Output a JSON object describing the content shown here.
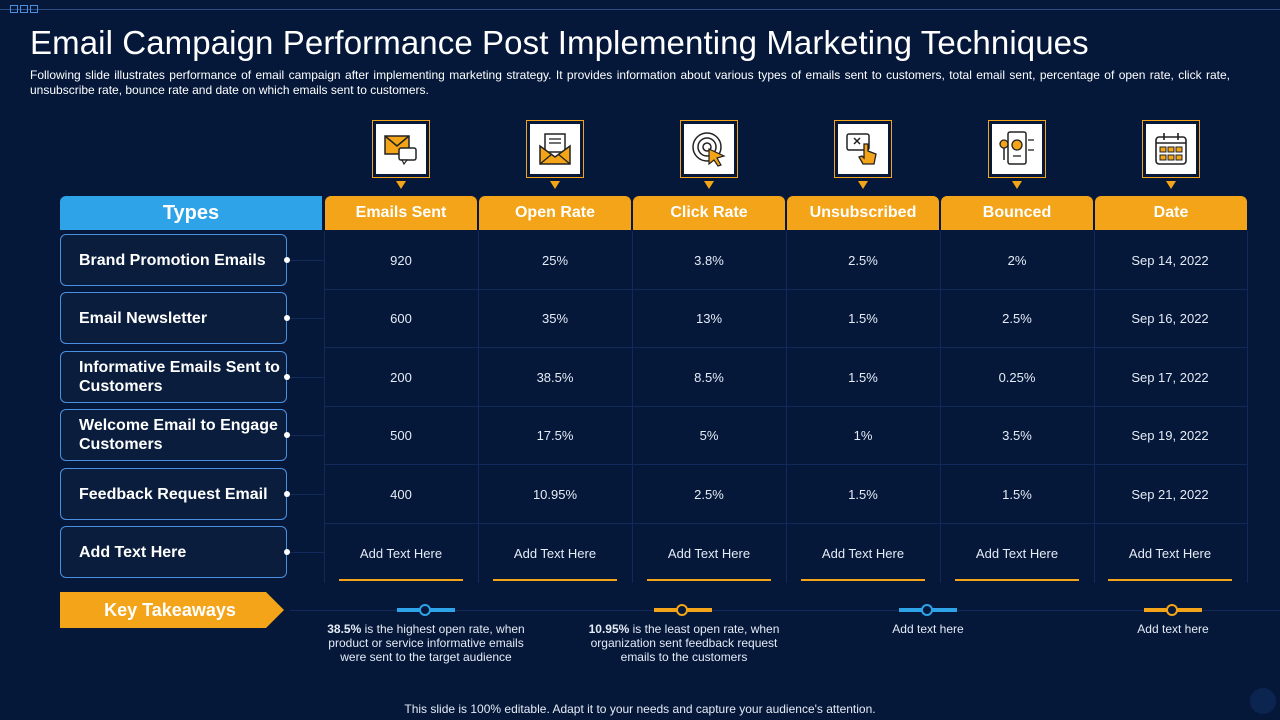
{
  "title": "Email Campaign Performance Post Implementing Marketing Techniques",
  "subtitle": "Following slide illustrates performance of email campaign after implementing marketing strategy. It provides information about various types of emails sent to customers, total email sent, percentage of open rate, click rate, unsubscribe rate, bounce rate and date on which emails sent to customers.",
  "colors": {
    "background": "#05183a",
    "accent_orange": "#f4a418",
    "accent_blue": "#2ea3e8"
  },
  "header": {
    "types_label": "Types",
    "columns": [
      {
        "label": "Emails Sent",
        "icon": "envelope-chat-icon"
      },
      {
        "label": "Open Rate",
        "icon": "open-envelope-icon"
      },
      {
        "label": "Click Rate",
        "icon": "click-target-icon"
      },
      {
        "label": "Unsubscribed",
        "icon": "unsubscribe-click-icon"
      },
      {
        "label": "Bounced",
        "icon": "mobile-analytics-icon"
      },
      {
        "label": "Date",
        "icon": "calendar-icon"
      }
    ]
  },
  "rows": [
    {
      "type": "Brand Promotion Emails",
      "values": [
        "920",
        "25%",
        "3.8%",
        "2.5%",
        "2%",
        "Sep 14, 2022"
      ]
    },
    {
      "type": "Email Newsletter",
      "values": [
        "600",
        "35%",
        "13%",
        "1.5%",
        "2.5%",
        "Sep 16, 2022"
      ]
    },
    {
      "type": "Informative Emails Sent to Customers",
      "values": [
        "200",
        "38.5%",
        "8.5%",
        "1.5%",
        "0.25%",
        "Sep 17, 2022"
      ]
    },
    {
      "type": "Welcome Email to Engage Customers",
      "values": [
        "500",
        "17.5%",
        "5%",
        "1%",
        "3.5%",
        "Sep 19, 2022"
      ]
    },
    {
      "type": "Feedback Request Email",
      "values": [
        "400",
        "10.95%",
        "2.5%",
        "1.5%",
        "1.5%",
        "Sep 21, 2022"
      ]
    },
    {
      "type": "Add Text Here",
      "values": [
        "Add Text Here",
        "Add Text Here",
        "Add Text Here",
        "Add Text Here",
        "Add Text Here",
        "Add Text Here"
      ]
    }
  ],
  "key_takeaways": {
    "label": "Key Takeaways",
    "items": [
      {
        "highlight": "38.5%",
        "text": " is the highest open rate, when product or service informative emails were sent to the target audience"
      },
      {
        "highlight": "10.95%",
        "text": " is the least open rate, when organization sent feedback request emails to the customers"
      },
      {
        "highlight": "",
        "text": "Add text here"
      },
      {
        "highlight": "",
        "text": "Add text here"
      }
    ]
  },
  "footer": "This slide is 100% editable. Adapt it to your needs and capture your audience's attention."
}
